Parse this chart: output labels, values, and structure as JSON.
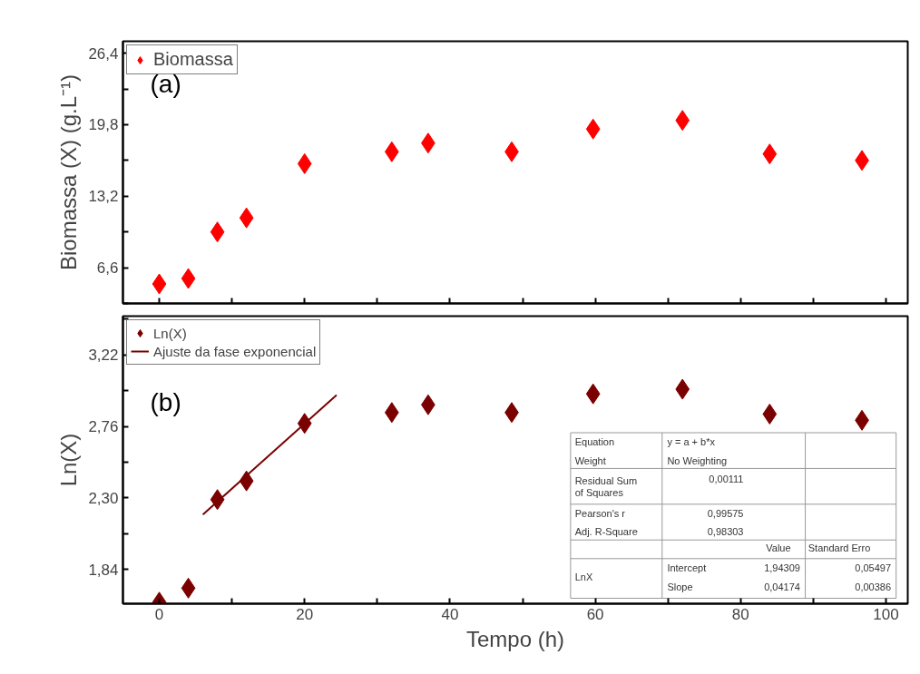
{
  "chart_data": [
    {
      "type": "scatter",
      "ylabel": "Biomassa (X) (g.L⁻¹)",
      "tick_labels": "y",
      "legend": "top left",
      "grid": false,
      "xlim": [
        -5,
        103
      ],
      "xticks": [
        0,
        {
          "value": 10,
          "label": null
        },
        20,
        {
          "value": 30,
          "label": null
        },
        40,
        {
          "value": 50,
          "label": null
        },
        60,
        {
          "value": 70,
          "label": null
        },
        80,
        {
          "value": 90,
          "label": null
        },
        100
      ],
      "ylim": [
        3.3,
        27.5
      ],
      "yticks": [
        {
          "value": 3.3,
          "label": null
        },
        {
          "value": 6.6,
          "label": "6,6"
        },
        {
          "value": 9.9,
          "label": null
        },
        {
          "value": 13.2,
          "label": "13,2"
        },
        {
          "value": 16.5,
          "label": null
        },
        {
          "value": 19.8,
          "label": "19,8"
        },
        {
          "value": 23.1,
          "label": null
        },
        {
          "value": 26.4,
          "label": "26,4"
        }
      ],
      "annotations": [
        "(a)"
      ],
      "series": [
        {
          "name": "Biomassa",
          "marker": "diamond",
          "color": "#ff0000",
          "x": [
            0,
            4,
            8,
            12,
            20,
            32,
            37,
            48.5,
            59.7,
            72,
            84,
            96.7
          ],
          "values": [
            5.1,
            5.6,
            9.9,
            11.2,
            16.2,
            17.3,
            18.1,
            17.3,
            19.4,
            20.2,
            17.1,
            16.5
          ]
        }
      ]
    },
    {
      "type": "scatter",
      "xlabel": "Tempo (h)",
      "ylabel": "Ln(X)",
      "legend": "top left",
      "grid": false,
      "xlim": [
        -5,
        103
      ],
      "xticks": [
        0,
        {
          "value": 10,
          "label": null
        },
        20,
        {
          "value": 30,
          "label": null
        },
        40,
        {
          "value": 50,
          "label": null
        },
        60,
        {
          "value": 70,
          "label": null
        },
        80,
        {
          "value": 90,
          "label": null
        },
        100
      ],
      "ylim": [
        1.62,
        3.47
      ],
      "yticks": [
        {
          "value": 1.84,
          "label": "1,84"
        },
        {
          "value": 2.07,
          "label": null
        },
        {
          "value": 2.3,
          "label": "2,30"
        },
        {
          "value": 2.53,
          "label": null
        },
        {
          "value": 2.76,
          "label": "2,76"
        },
        {
          "value": 2.99,
          "label": null
        },
        {
          "value": 3.22,
          "label": "3,22"
        },
        {
          "value": 3.45,
          "label": null
        }
      ],
      "annotations": [
        "(b)",
        "Equation",
        "y = a + b*x",
        "Weight",
        "No Weighting",
        "Residual Sum\nof Squares",
        "0,00111",
        "Pearson's r",
        "0,99575",
        "Adj. R-Square",
        "0,98303",
        "Value",
        "Standard Erro",
        "LnX",
        "Intercept",
        "1,94309",
        "0,05497",
        "Slope",
        "0,04174",
        "0,00386"
      ],
      "series": [
        {
          "name": "Ln(X)",
          "marker": "diamond",
          "color": "#7b0000",
          "x": [
            0,
            4,
            8,
            12,
            20,
            32,
            37,
            48.5,
            59.7,
            72,
            84,
            96.7
          ],
          "values": [
            1.63,
            1.72,
            2.29,
            2.41,
            2.78,
            2.85,
            2.9,
            2.85,
            2.97,
            3.0,
            2.84,
            2.8
          ]
        },
        {
          "name": "Ajuste da fase exponencial",
          "type": "line",
          "marker": "none",
          "color": "#7b0000",
          "x": [
            6,
            24.4
          ],
          "values": [
            2.193,
            2.962
          ]
        }
      ]
    }
  ]
}
